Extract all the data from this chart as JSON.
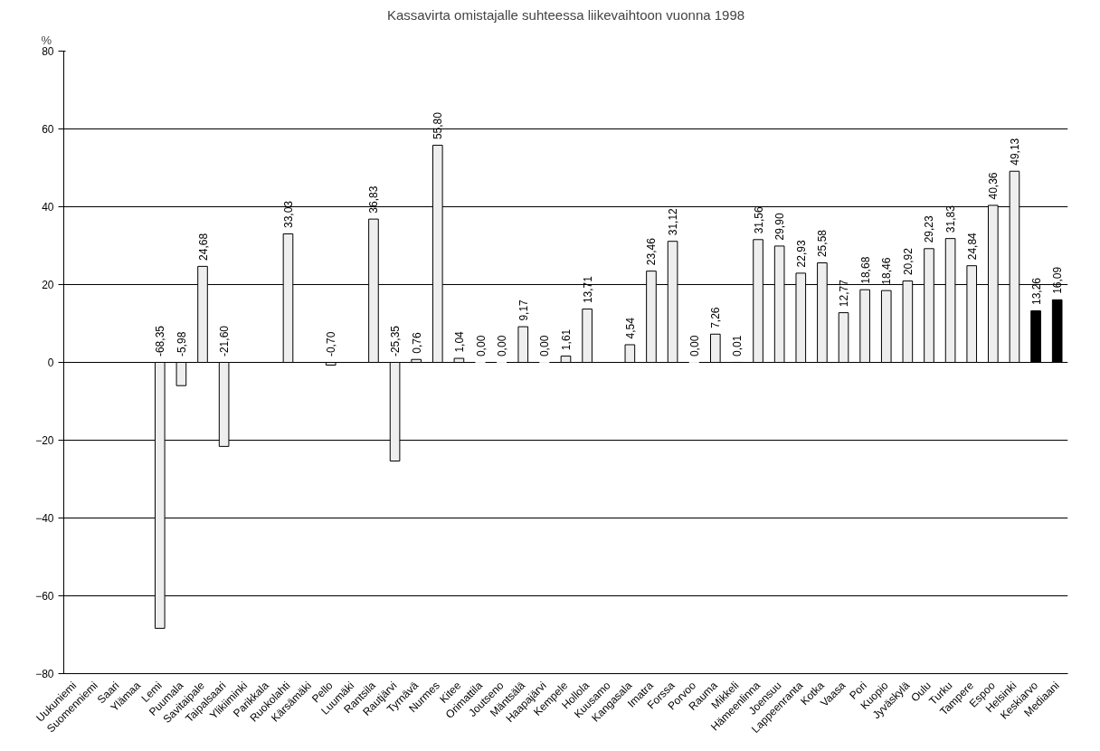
{
  "chart_data": {
    "type": "bar",
    "title": "Kassavirta omistajalle suhteessa liikevaihtoon vuonna 1998",
    "ylabel": "%",
    "categories": [
      "Uukuniemi",
      "Suomenniemi",
      "Saari",
      "Ylämaa",
      "Lemi",
      "Puumala",
      "Savitaipale",
      "Taipalsaari",
      "Ylikiiminki",
      "Parikkala",
      "Ruokolahti",
      "Kärsämäki",
      "Pello",
      "Luumäki",
      "Rantsila",
      "Rautjärvi",
      "Tyrnävä",
      "Nurmes",
      "Kitee",
      "Orimattila",
      "Joutseno",
      "Mäntsälä",
      "Haapajärvi",
      "Kempele",
      "Hollola",
      "Kuusamo",
      "Kangasala",
      "Imatra",
      "Forssa",
      "Porvoo",
      "Rauma",
      "Mikkeli",
      "Hämeenlinna",
      "Joensuu",
      "Lappeenranta",
      "Kotka",
      "Vaasa",
      "Pori",
      "Kuopio",
      "Jyväskylä",
      "Oulu",
      "Turku",
      "Tampere",
      "Espoo",
      "Helsinki",
      "Keskiarvo",
      "Mediaani"
    ],
    "values": [
      null,
      null,
      null,
      null,
      -68.35,
      -5.98,
      24.68,
      -21.6,
      null,
      null,
      33.03,
      null,
      -0.7,
      null,
      36.83,
      -25.35,
      0.76,
      55.8,
      1.04,
      0.0,
      0.0,
      9.17,
      0.0,
      1.61,
      13.71,
      null,
      4.54,
      23.46,
      31.12,
      0.0,
      7.26,
      0.01,
      31.56,
      29.9,
      22.93,
      25.58,
      12.77,
      18.68,
      18.46,
      20.92,
      29.23,
      31.83,
      24.84,
      40.36,
      49.13,
      13.26,
      16.09
    ],
    "value_labels": [
      null,
      null,
      null,
      null,
      "-68,35",
      "-5,98",
      "24,68",
      "-21,60",
      null,
      null,
      "33,03",
      null,
      "-0,70",
      null,
      "36,83",
      "-25,35",
      "0,76",
      "55,80",
      "1,04",
      "0,00",
      "0,00",
      "9,17",
      "0,00",
      "1,61",
      "13,71",
      null,
      "4,54",
      "23,46",
      "31,12",
      "0,00",
      "7,26",
      "0,01",
      "31,56",
      "29,90",
      "22,93",
      "25,58",
      "12,77",
      "18,68",
      "18,46",
      "20,92",
      "29,23",
      "31,83",
      "24,84",
      "40,36",
      "49,13",
      "13,26",
      "16,09"
    ],
    "colors": [
      "#eeeeee",
      "#eeeeee",
      "#eeeeee",
      "#eeeeee",
      "#eeeeee",
      "#eeeeee",
      "#eeeeee",
      "#eeeeee",
      "#eeeeee",
      "#eeeeee",
      "#eeeeee",
      "#eeeeee",
      "#eeeeee",
      "#eeeeee",
      "#eeeeee",
      "#eeeeee",
      "#eeeeee",
      "#eeeeee",
      "#eeeeee",
      "#eeeeee",
      "#eeeeee",
      "#eeeeee",
      "#eeeeee",
      "#eeeeee",
      "#eeeeee",
      "#eeeeee",
      "#eeeeee",
      "#eeeeee",
      "#eeeeee",
      "#eeeeee",
      "#eeeeee",
      "#eeeeee",
      "#eeeeee",
      "#eeeeee",
      "#eeeeee",
      "#eeeeee",
      "#eeeeee",
      "#eeeeee",
      "#eeeeee",
      "#eeeeee",
      "#eeeeee",
      "#eeeeee",
      "#eeeeee",
      "#eeeeee",
      "#eeeeee",
      "#000000",
      "#000000"
    ],
    "ylim": [
      -80,
      80
    ],
    "yticks": [
      -80,
      -60,
      -40,
      -20,
      0,
      20,
      40,
      60,
      80
    ],
    "grid": "y"
  }
}
